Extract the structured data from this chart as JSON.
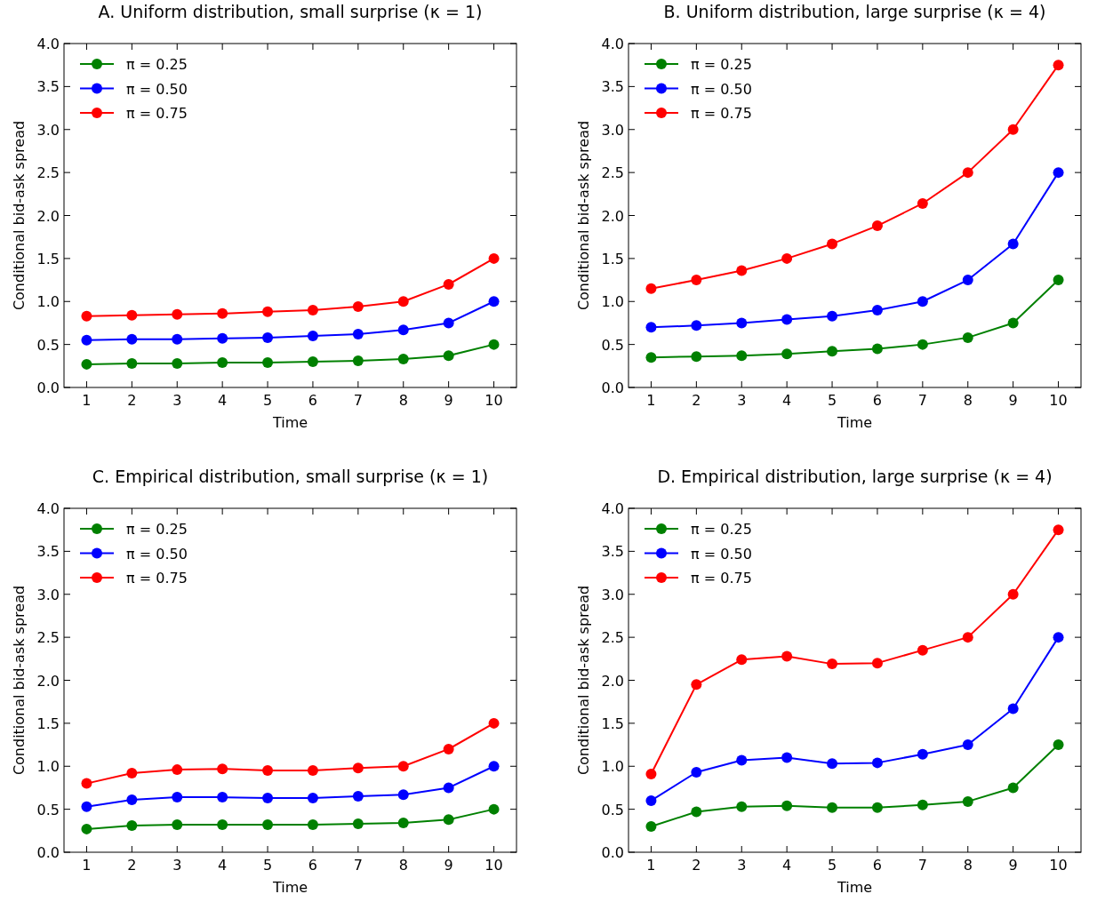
{
  "chart_data": [
    {
      "type": "line",
      "title": "A. Uniform distribution, small surprise (κ = 1)",
      "xlabel": "Time",
      "ylabel": "Conditional bid-ask spread",
      "x": [
        1,
        2,
        3,
        4,
        5,
        6,
        7,
        8,
        9,
        10
      ],
      "xlim": [
        0.5,
        10.5
      ],
      "xticks": [
        1,
        2,
        3,
        4,
        5,
        6,
        7,
        8,
        9,
        10
      ],
      "ylim": [
        0,
        4
      ],
      "yticks": [
        {
          "value": 0,
          "label": "0.0"
        },
        {
          "value": 0.5,
          "label": "0.5"
        },
        {
          "value": 1,
          "label": "1.0"
        },
        {
          "value": 1.5,
          "label": "1.5"
        },
        {
          "value": 2,
          "label": "2.0"
        },
        {
          "value": 2.5,
          "label": "2.5"
        },
        {
          "value": 3,
          "label": "3.0"
        },
        {
          "value": 3.5,
          "label": "3.5"
        },
        {
          "value": 4,
          "label": "4.0"
        }
      ],
      "legend": "top left",
      "marker": "circle",
      "grid": false,
      "series": [
        {
          "name": "π = 0.25",
          "color": "#008000",
          "values": [
            0.27,
            0.28,
            0.28,
            0.29,
            0.29,
            0.3,
            0.31,
            0.33,
            0.37,
            0.5
          ]
        },
        {
          "name": "π = 0.50",
          "color": "#0000ff",
          "values": [
            0.55,
            0.56,
            0.56,
            0.57,
            0.58,
            0.6,
            0.62,
            0.67,
            0.75,
            1.0
          ]
        },
        {
          "name": "π = 0.75",
          "color": "#ff0000",
          "values": [
            0.83,
            0.84,
            0.85,
            0.86,
            0.88,
            0.9,
            0.94,
            1.0,
            1.2,
            1.5
          ]
        }
      ]
    },
    {
      "type": "line",
      "title": "B. Uniform distribution, large surprise (κ = 4)",
      "xlabel": "Time",
      "ylabel": "Conditional bid-ask spread",
      "x": [
        1,
        2,
        3,
        4,
        5,
        6,
        7,
        8,
        9,
        10
      ],
      "xlim": [
        0.5,
        10.5
      ],
      "xticks": [
        1,
        2,
        3,
        4,
        5,
        6,
        7,
        8,
        9,
        10
      ],
      "ylim": [
        0,
        4
      ],
      "yticks": [
        {
          "value": 0,
          "label": "0.0"
        },
        {
          "value": 0.5,
          "label": "0.5"
        },
        {
          "value": 1,
          "label": "1.0"
        },
        {
          "value": 1.5,
          "label": "1.5"
        },
        {
          "value": 2,
          "label": "2.0"
        },
        {
          "value": 2.5,
          "label": "2.5"
        },
        {
          "value": 3,
          "label": "3.0"
        },
        {
          "value": 3.5,
          "label": "3.5"
        },
        {
          "value": 4,
          "label": "4.0"
        }
      ],
      "legend": "top left",
      "marker": "circle",
      "grid": false,
      "series": [
        {
          "name": "π = 0.25",
          "color": "#008000",
          "values": [
            0.35,
            0.36,
            0.37,
            0.39,
            0.42,
            0.45,
            0.5,
            0.58,
            0.75,
            1.25
          ]
        },
        {
          "name": "π = 0.50",
          "color": "#0000ff",
          "values": [
            0.7,
            0.72,
            0.75,
            0.79,
            0.83,
            0.9,
            1.0,
            1.25,
            1.67,
            2.5
          ]
        },
        {
          "name": "π = 0.75",
          "color": "#ff0000",
          "values": [
            1.15,
            1.25,
            1.36,
            1.5,
            1.67,
            1.88,
            2.14,
            2.5,
            3.0,
            3.75
          ]
        }
      ]
    },
    {
      "type": "line",
      "title": "C. Empirical distribution, small surprise (κ = 1)",
      "xlabel": "Time",
      "ylabel": "Conditional bid-ask spread",
      "x": [
        1,
        2,
        3,
        4,
        5,
        6,
        7,
        8,
        9,
        10
      ],
      "xlim": [
        0.5,
        10.5
      ],
      "xticks": [
        1,
        2,
        3,
        4,
        5,
        6,
        7,
        8,
        9,
        10
      ],
      "ylim": [
        0,
        4
      ],
      "yticks": [
        {
          "value": 0,
          "label": "0.0"
        },
        {
          "value": 0.5,
          "label": "0.5"
        },
        {
          "value": 1,
          "label": "1.0"
        },
        {
          "value": 1.5,
          "label": "1.5"
        },
        {
          "value": 2,
          "label": "2.0"
        },
        {
          "value": 2.5,
          "label": "2.5"
        },
        {
          "value": 3,
          "label": "3.0"
        },
        {
          "value": 3.5,
          "label": "3.5"
        },
        {
          "value": 4,
          "label": "4.0"
        }
      ],
      "legend": "top left",
      "marker": "circle",
      "grid": false,
      "series": [
        {
          "name": "π = 0.25",
          "color": "#008000",
          "values": [
            0.27,
            0.31,
            0.32,
            0.32,
            0.32,
            0.32,
            0.33,
            0.34,
            0.38,
            0.5
          ]
        },
        {
          "name": "π = 0.50",
          "color": "#0000ff",
          "values": [
            0.53,
            0.61,
            0.64,
            0.64,
            0.63,
            0.63,
            0.65,
            0.67,
            0.75,
            1.0
          ]
        },
        {
          "name": "π = 0.75",
          "color": "#ff0000",
          "values": [
            0.8,
            0.92,
            0.96,
            0.97,
            0.95,
            0.95,
            0.98,
            1.0,
            1.2,
            1.5
          ]
        }
      ]
    },
    {
      "type": "line",
      "title": "D. Empirical distribution, large surprise (κ = 4)",
      "xlabel": "Time",
      "ylabel": "Conditional bid-ask spread",
      "x": [
        1,
        2,
        3,
        4,
        5,
        6,
        7,
        8,
        9,
        10
      ],
      "xlim": [
        0.5,
        10.5
      ],
      "xticks": [
        1,
        2,
        3,
        4,
        5,
        6,
        7,
        8,
        9,
        10
      ],
      "ylim": [
        0,
        4
      ],
      "yticks": [
        {
          "value": 0,
          "label": "0.0"
        },
        {
          "value": 0.5,
          "label": "0.5"
        },
        {
          "value": 1,
          "label": "1.0"
        },
        {
          "value": 1.5,
          "label": "1.5"
        },
        {
          "value": 2,
          "label": "2.0"
        },
        {
          "value": 2.5,
          "label": "2.5"
        },
        {
          "value": 3,
          "label": "3.0"
        },
        {
          "value": 3.5,
          "label": "3.5"
        },
        {
          "value": 4,
          "label": "4.0"
        }
      ],
      "legend": "top left",
      "marker": "circle",
      "grid": false,
      "series": [
        {
          "name": "π = 0.25",
          "color": "#008000",
          "values": [
            0.3,
            0.47,
            0.53,
            0.54,
            0.52,
            0.52,
            0.55,
            0.59,
            0.75,
            1.25
          ]
        },
        {
          "name": "π = 0.50",
          "color": "#0000ff",
          "values": [
            0.6,
            0.93,
            1.07,
            1.1,
            1.03,
            1.04,
            1.14,
            1.25,
            1.67,
            2.5
          ]
        },
        {
          "name": "π = 0.75",
          "color": "#ff0000",
          "values": [
            0.91,
            1.95,
            2.24,
            2.28,
            2.19,
            2.2,
            2.35,
            2.5,
            3.0,
            3.75
          ]
        }
      ]
    }
  ]
}
